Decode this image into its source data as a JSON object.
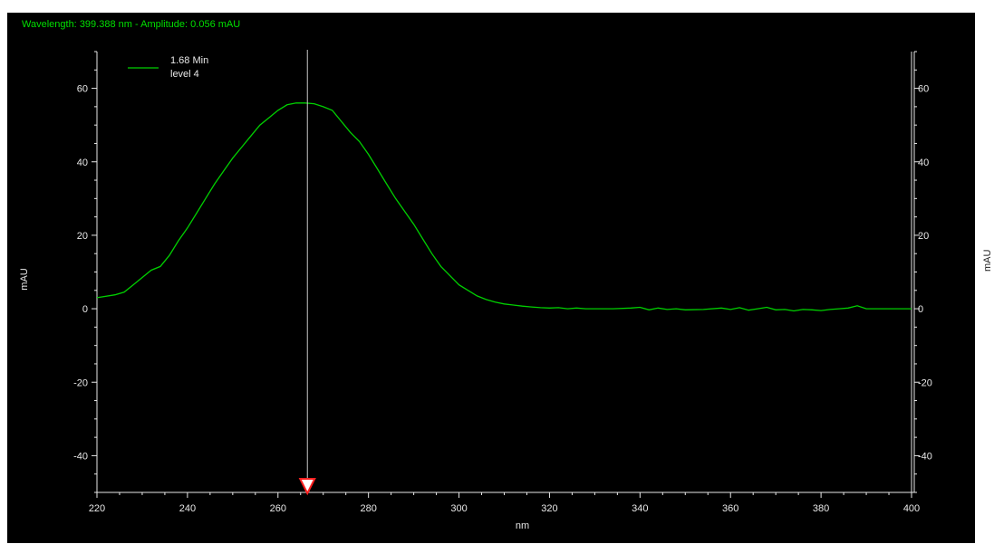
{
  "status": {
    "wavelength_label": "Wavelength:",
    "wavelength_value": "399.388 nm",
    "separator": "-",
    "amplitude_label": "Amplitude:",
    "amplitude_value": "0.056 mAU"
  },
  "colors": {
    "background": "#000000",
    "trace": "#00d000",
    "axis": "#e8e8e8",
    "cursor_line": "#c8c8c8",
    "cursor_marker_fill": "#ffffff",
    "cursor_marker_stroke": "#ff2020",
    "status_text": "#00e000"
  },
  "chart_data": {
    "type": "line",
    "xlabel": "nm",
    "ylabel": "mAU",
    "ylabel_right": "mAU",
    "xlim": [
      220,
      400
    ],
    "ylim": [
      -50,
      70
    ],
    "x_ticks": [
      220,
      240,
      260,
      280,
      300,
      320,
      340,
      360,
      380,
      400
    ],
    "y_ticks": [
      -40,
      -20,
      0,
      20,
      40,
      60
    ],
    "grid": false,
    "legend": {
      "placement": "top-left",
      "entries": [
        {
          "line1": "1.68 Min",
          "line2": "level 4"
        }
      ]
    },
    "series": [
      {
        "name": "1.68 Min level 4",
        "x": [
          220,
          224,
          226,
          228,
          230,
          232,
          234,
          236,
          238,
          240,
          242,
          244,
          246,
          248,
          250,
          252,
          254,
          256,
          258,
          260,
          262,
          264,
          266,
          268,
          270,
          272,
          274,
          276,
          278,
          280,
          282,
          284,
          286,
          288,
          290,
          292,
          294,
          296,
          298,
          300,
          302,
          304,
          306,
          308,
          310,
          312,
          314,
          316,
          318,
          320,
          322,
          324,
          326,
          328,
          330,
          334,
          338,
          340,
          342,
          344,
          346,
          348,
          350,
          354,
          358,
          360,
          362,
          364,
          366,
          368,
          370,
          372,
          374,
          376,
          378,
          380,
          382,
          384,
          386,
          388,
          390,
          392,
          396,
          400
        ],
        "y": [
          3,
          3.8,
          4.5,
          6.5,
          8.5,
          10.5,
          11.5,
          14.5,
          18.5,
          22,
          26,
          30,
          34,
          37.5,
          41,
          44,
          47,
          50,
          52,
          54,
          55.5,
          56,
          56,
          55.8,
          55,
          54,
          51,
          48,
          45.5,
          42,
          38,
          34,
          30,
          26.5,
          23,
          19,
          15,
          11.5,
          9,
          6.5,
          5,
          3.5,
          2.5,
          1.8,
          1.3,
          1,
          0.7,
          0.5,
          0.3,
          0.2,
          0.3,
          0,
          0.2,
          0,
          0,
          0,
          0.2,
          0.4,
          -0.3,
          0.2,
          -0.2,
          0,
          -0.3,
          -0.2,
          0.2,
          -0.2,
          0.3,
          -0.4,
          0,
          0.4,
          -0.3,
          -0.2,
          -0.6,
          -0.2,
          -0.3,
          -0.5,
          -0.2,
          0,
          0.2,
          0.8,
          0,
          0,
          0,
          0
        ]
      }
    ],
    "cursor": {
      "x": 266.5
    }
  }
}
